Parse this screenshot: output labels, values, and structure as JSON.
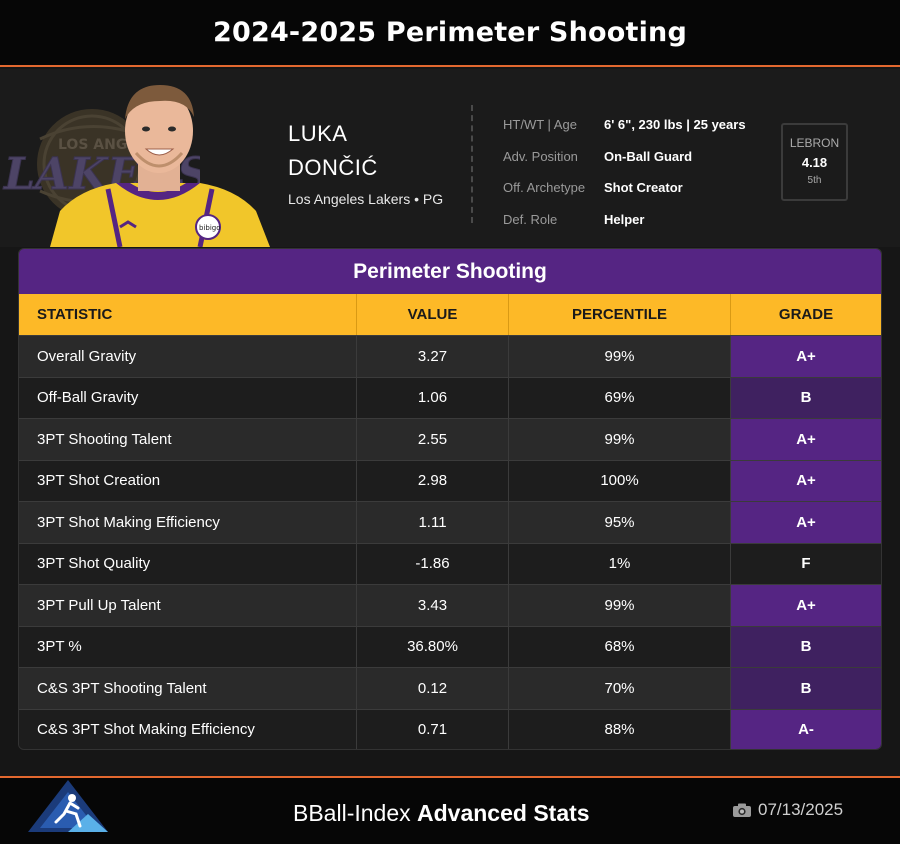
{
  "header": {
    "title": "2024-2025 Perimeter Shooting"
  },
  "player": {
    "first_name": "LUKA",
    "last_name": "DONČIĆ",
    "team_position": "Los Angeles Lakers • PG",
    "team_logo_text": "LAKERS",
    "team_logo_subtext": "LOS ANGELES",
    "jersey_patch": "bibigo",
    "colors": {
      "purple": "#552583",
      "gold": "#fdb927",
      "accent": "#e3682f"
    }
  },
  "info": [
    {
      "key": "HT/WT | Age",
      "value": "6' 6\", 230 lbs | 25 years"
    },
    {
      "key": "Adv. Position",
      "value": "On-Ball Guard"
    },
    {
      "key": "Off. Archetype",
      "value": "Shot Creator"
    },
    {
      "key": "Def. Role",
      "value": "Helper"
    }
  ],
  "lebron": {
    "label": "LEBRON",
    "value": "4.18",
    "rank": "5th"
  },
  "table": {
    "title": "Perimeter Shooting",
    "columns": [
      "STATISTIC",
      "VALUE",
      "PERCENTILE",
      "GRADE"
    ],
    "rows": [
      {
        "stat": "Overall Gravity",
        "value": "3.27",
        "pct": "99%",
        "grade": "A+",
        "grade_bg": "#552583"
      },
      {
        "stat": "Off-Ball Gravity",
        "value": "1.06",
        "pct": "69%",
        "grade": "B",
        "grade_bg": "#3f2160"
      },
      {
        "stat": "3PT Shooting Talent",
        "value": "2.55",
        "pct": "99%",
        "grade": "A+",
        "grade_bg": "#552583"
      },
      {
        "stat": "3PT Shot Creation",
        "value": "2.98",
        "pct": "100%",
        "grade": "A+",
        "grade_bg": "#552583"
      },
      {
        "stat": "3PT Shot Making Efficiency",
        "value": "1.11",
        "pct": "95%",
        "grade": "A+",
        "grade_bg": "#552583"
      },
      {
        "stat": "3PT Shot Quality",
        "value": "-1.86",
        "pct": "1%",
        "grade": "F",
        "grade_bg": "#1d1d1d"
      },
      {
        "stat": "3PT Pull Up Talent",
        "value": "3.43",
        "pct": "99%",
        "grade": "A+",
        "grade_bg": "#552583"
      },
      {
        "stat": "3PT %",
        "value": "36.80%",
        "pct": "68%",
        "grade": "B",
        "grade_bg": "#3f2160"
      },
      {
        "stat": "C&S 3PT Shooting Talent",
        "value": "0.12",
        "pct": "70%",
        "grade": "B",
        "grade_bg": "#3f2160"
      },
      {
        "stat": "C&S 3PT Shot Making Efficiency",
        "value": "0.71",
        "pct": "88%",
        "grade": "A-",
        "grade_bg": "#552583"
      }
    ]
  },
  "footer": {
    "brand_light": "BBall-Index",
    "brand_bold": "Advanced Stats",
    "camera_icon": "camera-icon",
    "date": "07/13/2025"
  }
}
